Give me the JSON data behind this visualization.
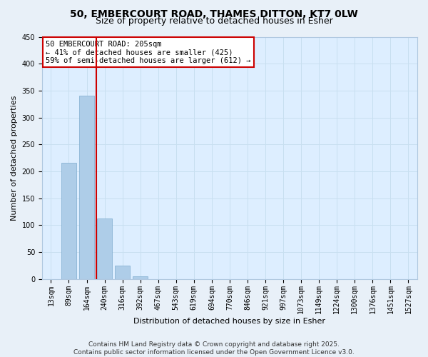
{
  "title_line1": "50, EMBERCOURT ROAD, THAMES DITTON, KT7 0LW",
  "title_line2": "Size of property relative to detached houses in Esher",
  "xlabel": "Distribution of detached houses by size in Esher",
  "ylabel": "Number of detached properties",
  "bar_color": "#aecde8",
  "bar_edge_color": "#8ab4d4",
  "grid_color": "#c8dff0",
  "background_color": "#ddeeff",
  "fig_background": "#e8f0f8",
  "categories": [
    "13sqm",
    "89sqm",
    "164sqm",
    "240sqm",
    "316sqm",
    "392sqm",
    "467sqm",
    "543sqm",
    "619sqm",
    "694sqm",
    "770sqm",
    "846sqm",
    "921sqm",
    "997sqm",
    "1073sqm",
    "1149sqm",
    "1224sqm",
    "1300sqm",
    "1376sqm",
    "1451sqm",
    "1527sqm"
  ],
  "values": [
    0,
    216,
    340,
    113,
    25,
    5,
    0,
    0,
    0,
    0,
    0,
    0,
    0,
    0,
    0,
    0,
    0,
    0,
    0,
    0,
    0
  ],
  "ylim": [
    0,
    450
  ],
  "yticks": [
    0,
    50,
    100,
    150,
    200,
    250,
    300,
    350,
    400,
    450
  ],
  "annotation_line1": "50 EMBERCOURT ROAD: 205sqm",
  "annotation_line2": "← 41% of detached houses are smaller (425)",
  "annotation_line3": "59% of semi-detached houses are larger (612) →",
  "annotation_box_color": "#ffffff",
  "annotation_border_color": "#cc0000",
  "red_line_color": "#cc0000",
  "footer_line1": "Contains HM Land Registry data © Crown copyright and database right 2025.",
  "footer_line2": "Contains public sector information licensed under the Open Government Licence v3.0.",
  "title_fontsize": 10,
  "subtitle_fontsize": 9,
  "axis_label_fontsize": 8,
  "tick_fontsize": 7,
  "annotation_fontsize": 7.5,
  "footer_fontsize": 6.5
}
